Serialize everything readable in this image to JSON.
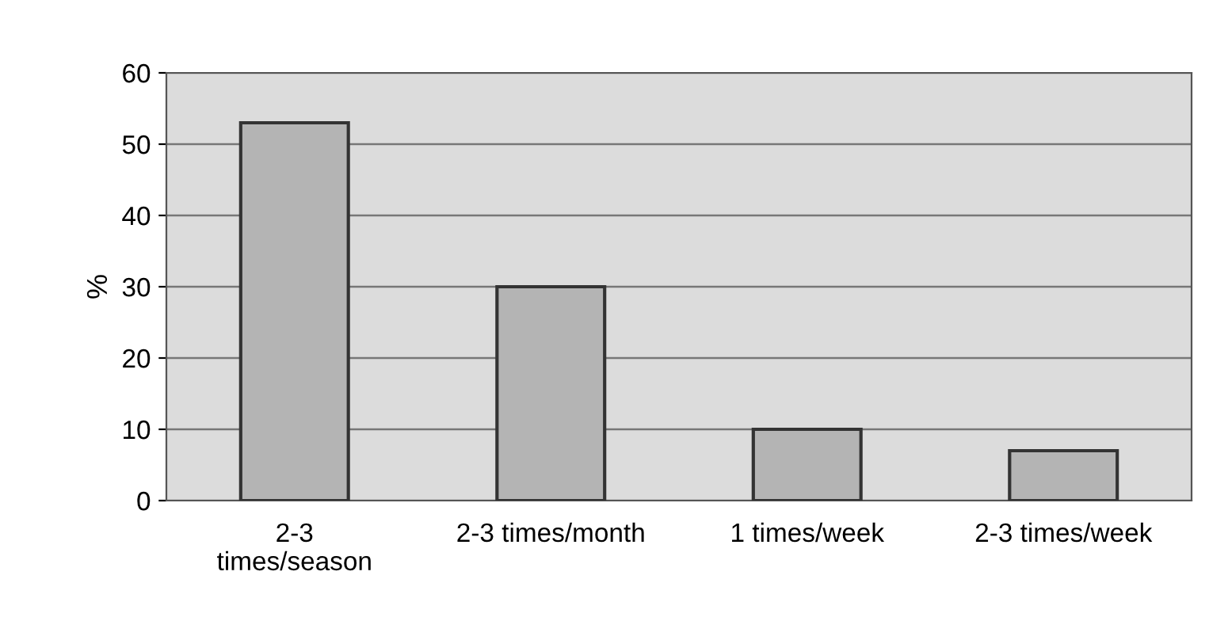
{
  "chart_data": {
    "type": "bar",
    "ylabel": "%",
    "categories": [
      "2-3\ntimes/season",
      "2-3 times/month",
      "1 times/week",
      "2-3 times/week"
    ],
    "values": [
      53,
      30,
      10,
      7
    ],
    "color": "#b4b4b4",
    "ylim": [
      0,
      60
    ],
    "yticks": [
      0,
      10,
      20,
      30,
      40,
      50,
      60
    ],
    "grid": "y"
  }
}
